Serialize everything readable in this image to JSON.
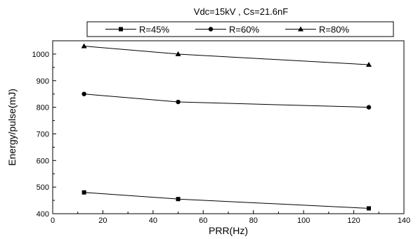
{
  "chart_data": {
    "type": "line",
    "title": "Vdc=15kV , Cs=21.6nF",
    "xlabel": "PRR(Hz)",
    "ylabel": "Energy/pulse(mJ)",
    "xlim": [
      0,
      140
    ],
    "ylim": [
      400,
      1050
    ],
    "xticks": [
      0,
      20,
      40,
      60,
      80,
      100,
      120,
      140
    ],
    "yticks": [
      400,
      500,
      600,
      700,
      800,
      900,
      1000
    ],
    "grid": false,
    "legend_position": "top",
    "series": [
      {
        "name": "R=45%",
        "marker": "square",
        "x": [
          12.5,
          50,
          126
        ],
        "y": [
          480,
          455,
          420
        ]
      },
      {
        "name": "R=60%",
        "marker": "circle",
        "x": [
          12.5,
          50,
          126
        ],
        "y": [
          850,
          820,
          800
        ]
      },
      {
        "name": "R=80%",
        "marker": "triangle",
        "x": [
          12.5,
          50,
          126
        ],
        "y": [
          1030,
          1000,
          960
        ]
      }
    ]
  }
}
